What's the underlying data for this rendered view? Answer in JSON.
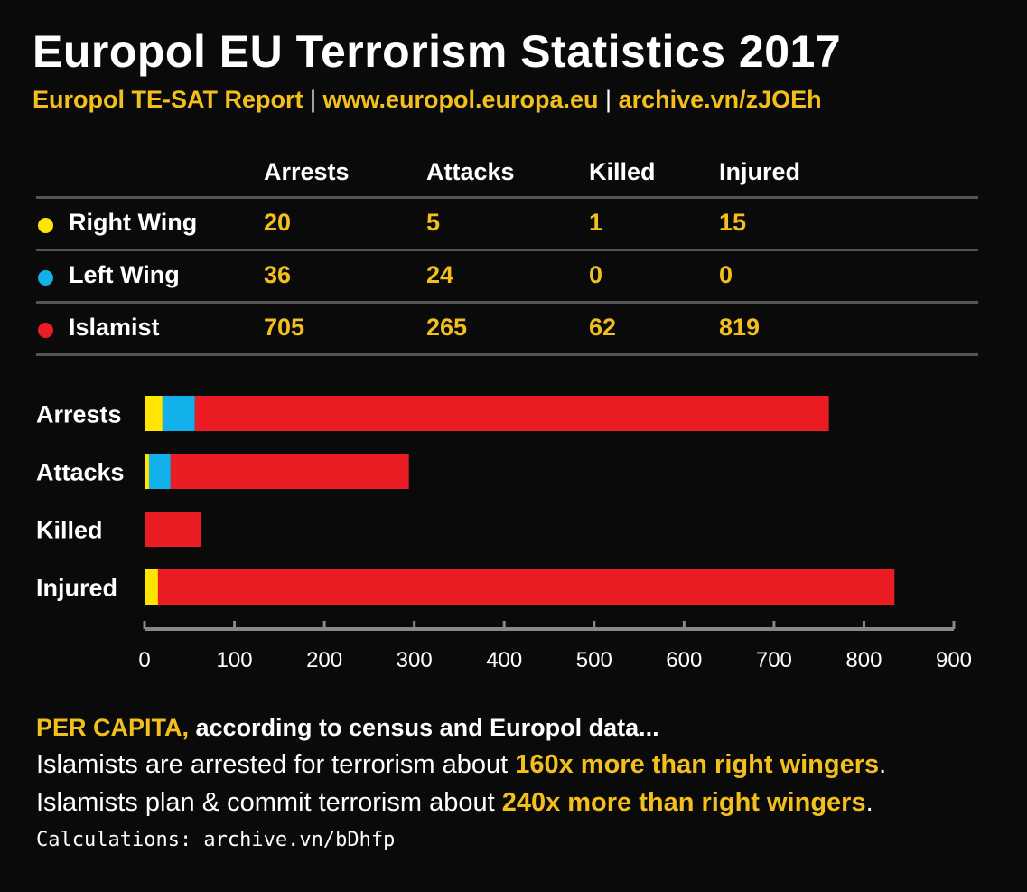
{
  "title": "Europol EU Terrorism Statistics 2017",
  "subtitle": {
    "part1": "Europol TE-SAT Report",
    "sep1": " | ",
    "part2": "www.europol.europa.eu",
    "sep2": " | ",
    "part3": "archive.vn/zJOEh"
  },
  "table": {
    "headers": [
      "Arrests",
      "Attacks",
      "Killed",
      "Injured"
    ],
    "rows": [
      {
        "label": "Right Wing",
        "color": "#ffe600",
        "values": [
          "20",
          "5",
          "1",
          "15"
        ]
      },
      {
        "label": "Left Wing",
        "color": "#12b1ec",
        "values": [
          "36",
          "24",
          "0",
          "0"
        ]
      },
      {
        "label": "Islamist",
        "color": "#ec1c24",
        "values": [
          "705",
          "265",
          "62",
          "819"
        ]
      }
    ]
  },
  "chart_data": {
    "type": "bar",
    "orientation": "horizontal",
    "stacked": true,
    "categories": [
      "Arrests",
      "Attacks",
      "Killed",
      "Injured"
    ],
    "series": [
      {
        "name": "Right Wing",
        "color": "#ffe600",
        "values": [
          20,
          5,
          1,
          15
        ]
      },
      {
        "name": "Left Wing",
        "color": "#12b1ec",
        "values": [
          36,
          24,
          0,
          0
        ]
      },
      {
        "name": "Islamist",
        "color": "#ec1c24",
        "values": [
          705,
          265,
          62,
          819
        ]
      }
    ],
    "xlim": [
      0,
      900
    ],
    "xticks": [
      "0",
      "100",
      "200",
      "300",
      "400",
      "500",
      "600",
      "700",
      "800",
      "900"
    ],
    "grid": false,
    "axis_color": "#888888"
  },
  "notes": {
    "line1_highlight": "PER CAPITA,",
    "line1_rest": " according to census and Europol data...",
    "line2_start": "Islamists are arrested for terrorism about ",
    "line2_highlight": "160x more than right wingers",
    "line2_end": ".",
    "line3_start": "Islamists plan & commit terrorism about ",
    "line3_highlight": "240x more than right wingers",
    "line3_end": ".",
    "calc": "Calculations: archive.vn/bDhfp"
  }
}
